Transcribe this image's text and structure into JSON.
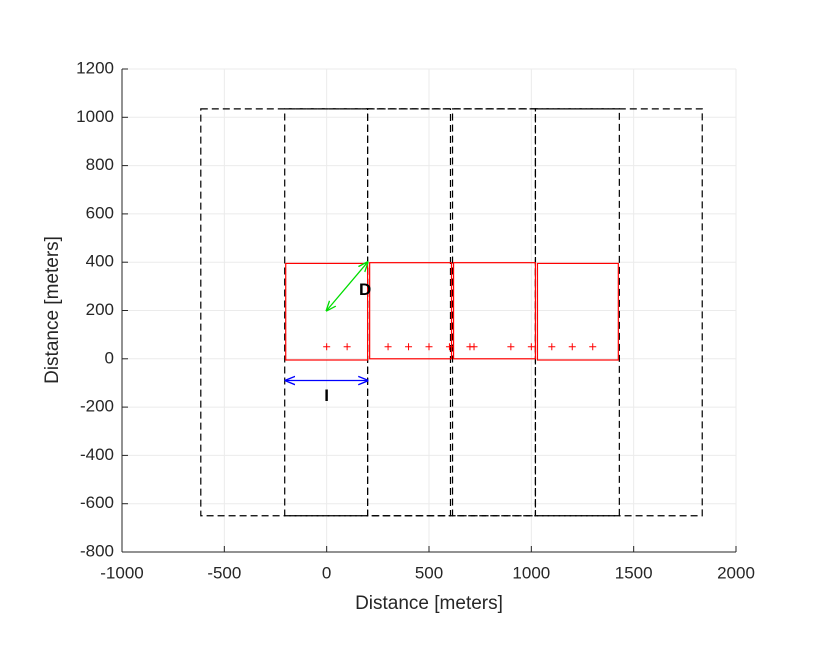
{
  "chart_data": {
    "type": "layout",
    "xlabel": "Distance [meters]",
    "ylabel": "Distance [meters]",
    "xlim": [
      -1000,
      2000
    ],
    "ylim": [
      -800,
      1200
    ],
    "xticks": [
      -1000,
      -500,
      0,
      500,
      1000,
      1500,
      2000
    ],
    "yticks": [
      -800,
      -600,
      -400,
      -200,
      0,
      200,
      400,
      600,
      800,
      1000,
      1200
    ],
    "grid": true,
    "dashed_rects": {
      "color": "#000000",
      "rects": [
        {
          "x": [
            -615,
            1835
          ],
          "y": [
            -650,
            1035
          ]
        },
        {
          "x": [
            -205,
            200
          ],
          "y": [
            -650,
            1035
          ]
        },
        {
          "x": [
            200,
            605
          ],
          "y": [
            -650,
            1035
          ]
        },
        {
          "x": [
            615,
            1020
          ],
          "y": [
            -650,
            1035
          ]
        },
        {
          "x": [
            1020,
            1430
          ],
          "y": [
            -650,
            1035
          ]
        }
      ]
    },
    "solid_rects": {
      "color": "#ff0000",
      "rects": [
        {
          "x": [
            -200,
            200
          ],
          "y": [
            -5,
            395
          ]
        },
        {
          "x": [
            210,
            610
          ],
          "y": [
            0,
            398
          ]
        },
        {
          "x": [
            620,
            1020
          ],
          "y": [
            0,
            398
          ]
        },
        {
          "x": [
            1030,
            1425
          ],
          "y": [
            -5,
            395
          ]
        }
      ]
    },
    "points": {
      "color": "#ff0000",
      "x": [
        0,
        100,
        300,
        400,
        500,
        600,
        700,
        720,
        900,
        1000,
        1100,
        1200,
        1300
      ],
      "y": [
        50,
        50,
        50,
        50,
        50,
        50,
        50,
        50,
        50,
        50,
        50,
        50,
        50
      ]
    },
    "arrows": [
      {
        "label": "D",
        "color": "#00dd00",
        "x": [
          0,
          200
        ],
        "y": [
          200,
          400
        ]
      },
      {
        "label": "I",
        "color": "#0000ff",
        "x": [
          -200,
          200
        ],
        "y": [
          -90,
          -90
        ]
      }
    ]
  }
}
